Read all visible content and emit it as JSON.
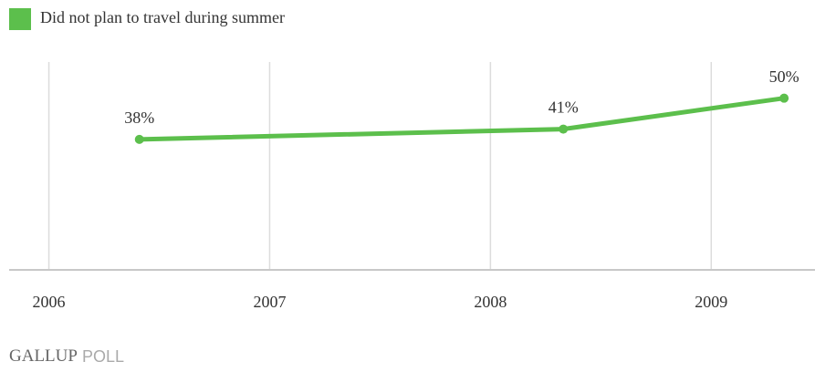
{
  "chart_data": {
    "type": "line",
    "x": [
      2006.41,
      2008.33,
      2009.33
    ],
    "xlim": [
      2005.82,
      2009.47
    ],
    "xticks": [
      2006,
      2007,
      2008,
      2009
    ],
    "ylim": [
      0,
      60
    ],
    "grid": true,
    "series": [
      {
        "name": "Did not plan to travel during summer",
        "color": "#5cbf4c",
        "values": [
          38,
          41,
          50
        ],
        "value_labels": [
          "38%",
          "41%",
          "50%"
        ]
      }
    ],
    "source": "GALLUP POLL"
  }
}
